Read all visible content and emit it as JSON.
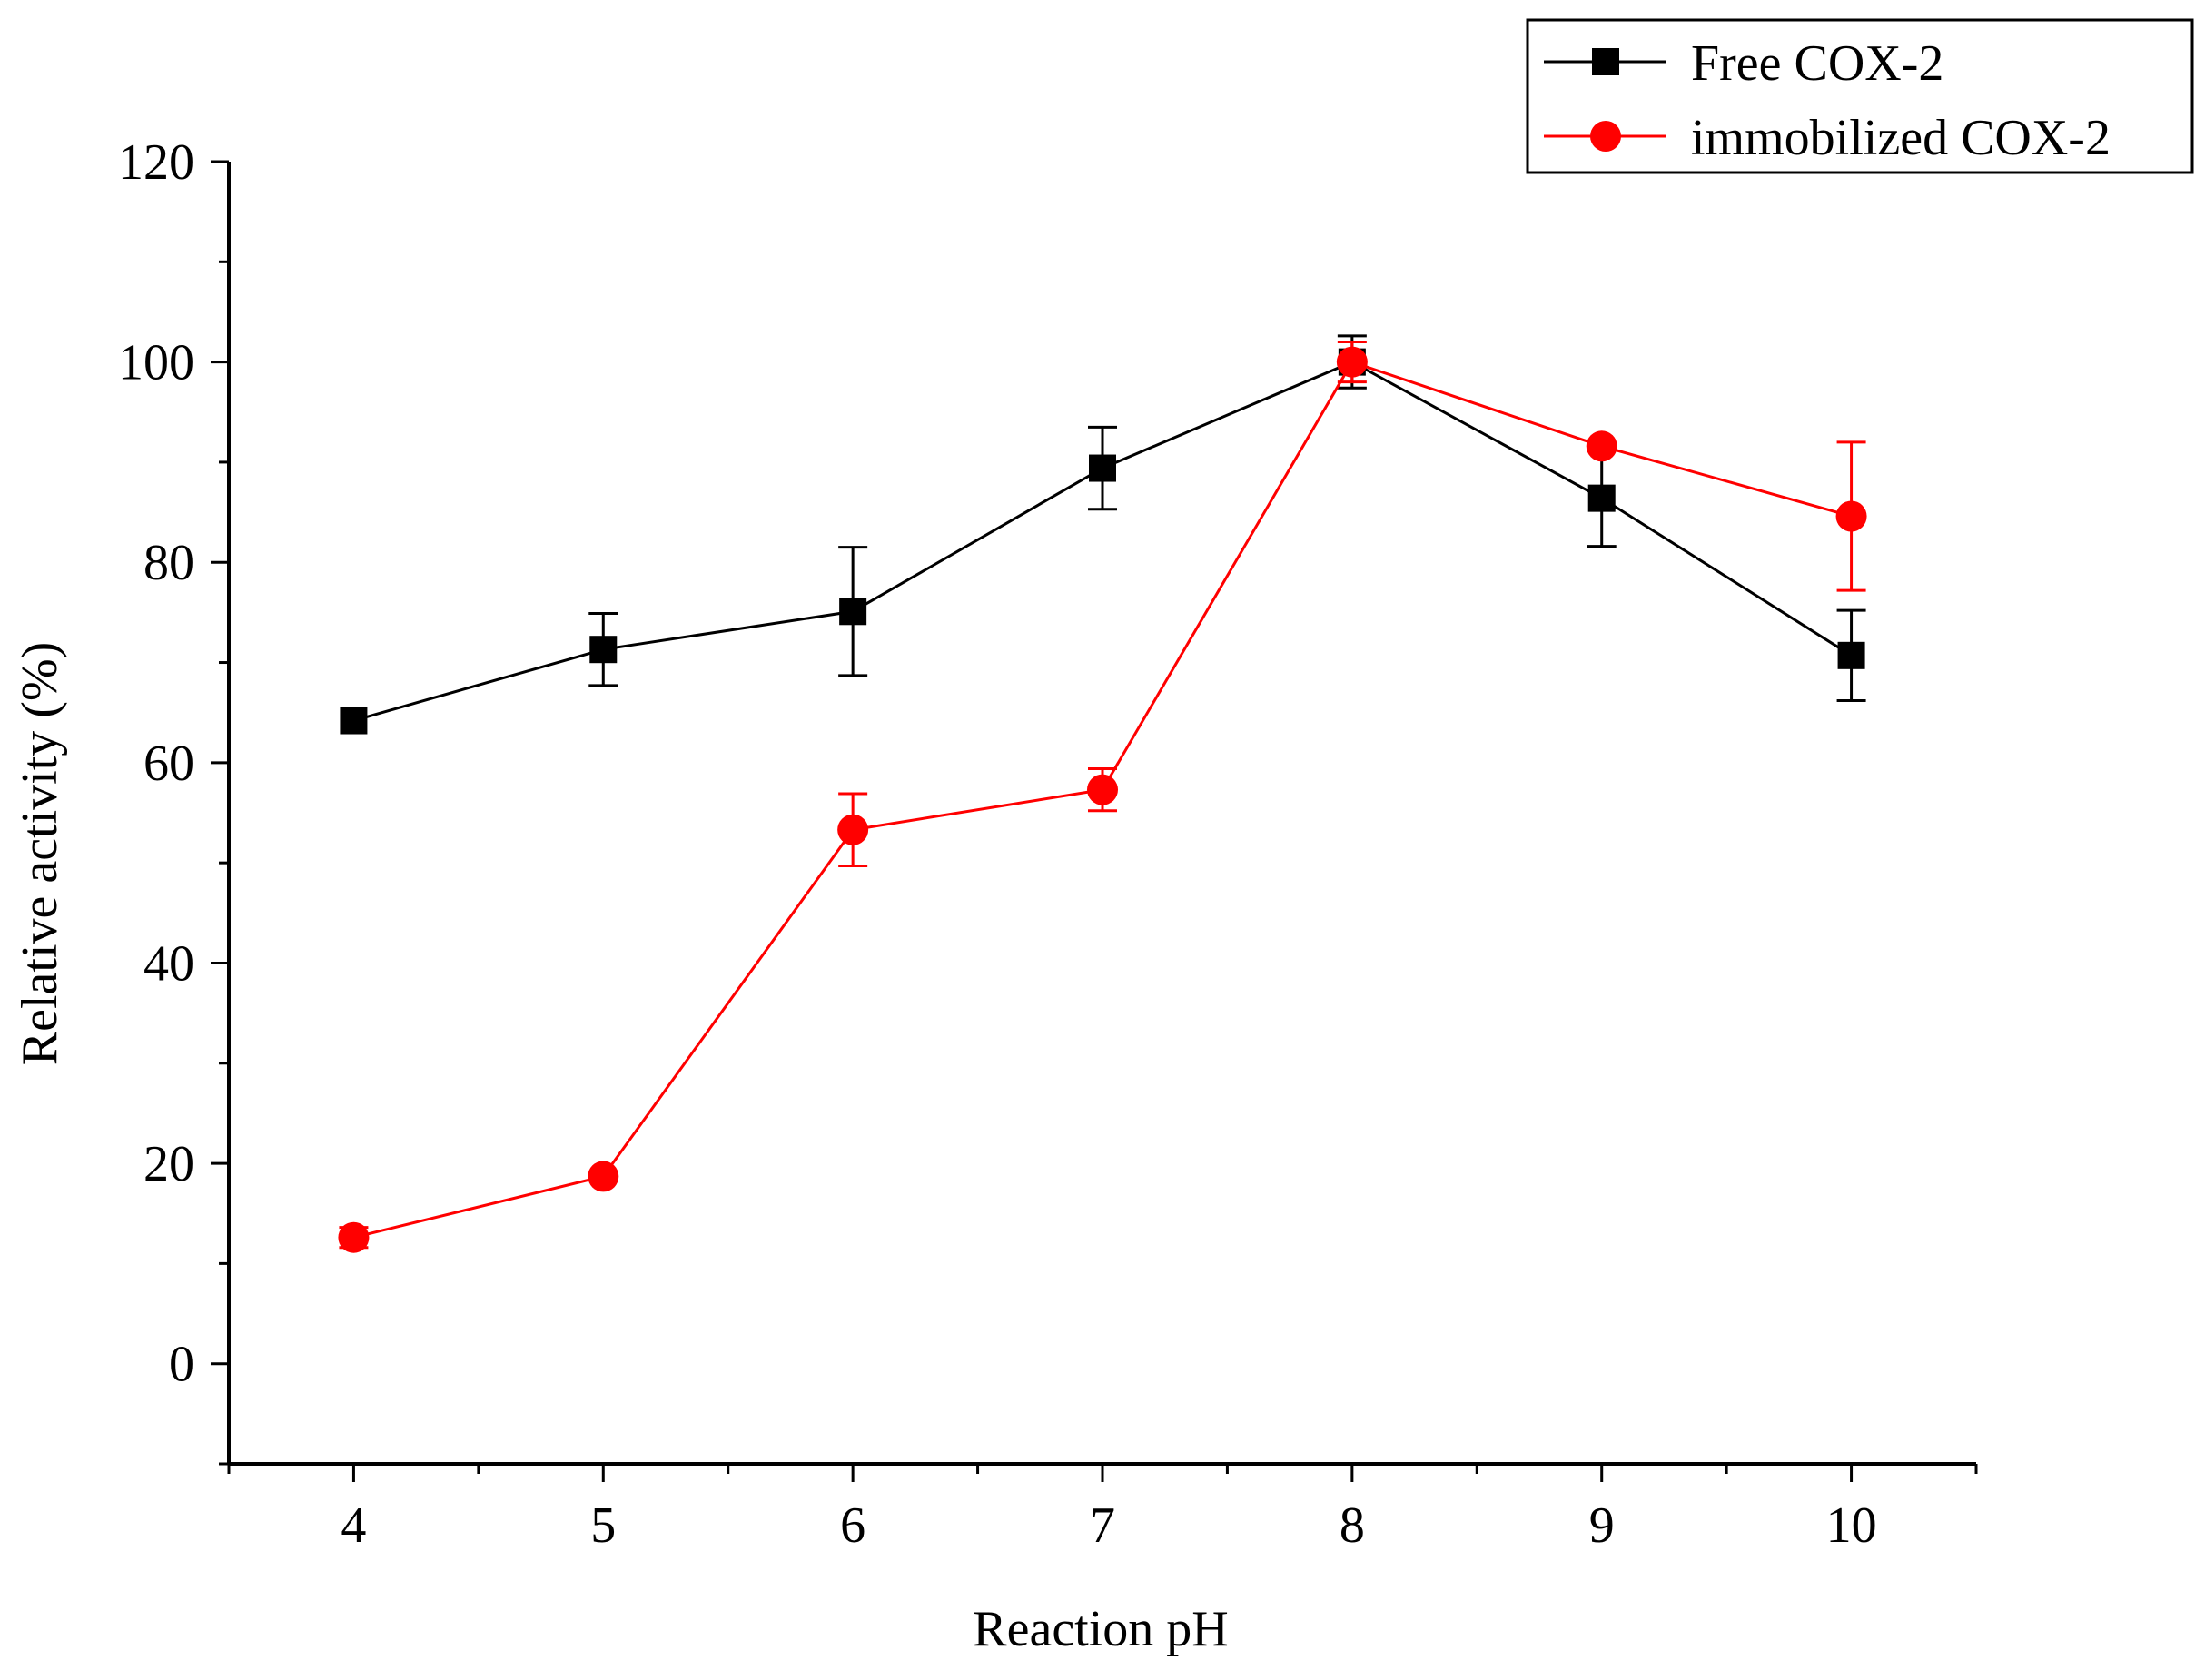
{
  "chart_data": {
    "type": "line",
    "title": "",
    "xlabel": "Reaction pH",
    "ylabel": "Relative activity (%)",
    "xlim": [
      3.5,
      10.5
    ],
    "ylim": [
      -10,
      120
    ],
    "x": [
      4,
      5,
      6,
      7,
      8,
      9,
      10
    ],
    "xticks": [
      "4",
      "5",
      "6",
      "7",
      "8",
      "9",
      "10"
    ],
    "yticks": [
      "0",
      "20",
      "40",
      "60",
      "80",
      "100",
      "120"
    ],
    "ytick_values": [
      0,
      20,
      40,
      60,
      80,
      100,
      120
    ],
    "legend_position": "top-right",
    "series": [
      {
        "name": "Free COX-2",
        "color": "#000000",
        "marker": "square",
        "values": [
          64.2,
          71.3,
          75.1,
          89.4,
          100.0,
          86.4,
          70.7
        ],
        "errors": [
          0.0,
          3.6,
          6.4,
          4.1,
          2.6,
          4.8,
          4.5
        ]
      },
      {
        "name": "immobilized COX-2",
        "color": "#ff0000",
        "marker": "circle",
        "values": [
          12.6,
          18.7,
          53.3,
          57.3,
          100.0,
          91.6,
          84.6
        ],
        "errors": [
          1.0,
          0.0,
          3.6,
          2.1,
          2.0,
          0.0,
          7.4
        ]
      }
    ]
  }
}
